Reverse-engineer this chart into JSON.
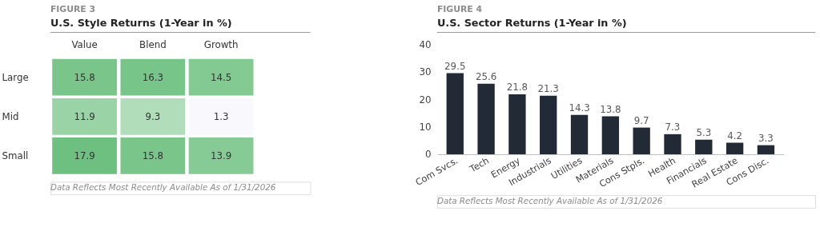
{
  "chart_data": [
    {
      "type": "heatmap",
      "subtitle": "FIGURE 3",
      "title": "U.S. Style Returns (1-Year in %)",
      "categories": [
        "Value",
        "Blend",
        "Growth"
      ],
      "y_categories": [
        "Large",
        "Mid",
        "Small"
      ],
      "cells": [
        [
          15.8,
          16.3,
          14.5
        ],
        [
          11.9,
          9.3,
          1.3
        ],
        [
          17.9,
          15.8,
          13.9
        ]
      ],
      "colors": [
        "#7ac68a",
        "#77c588",
        "#82c992",
        "#99d3a6",
        "#b1ddbb",
        "#f9f8fd",
        "#6dc080",
        "#7ac68a",
        "#86cb95"
      ],
      "data_labels": true,
      "annotations": [
        "Data Reflects Most Recently Available As of 1/31/2026"
      ]
    },
    {
      "type": "bar",
      "subtitle": "FIGURE 4",
      "title": "U.S. Sector Returns (1-Year in %)",
      "categories": [
        "Com Svcs.",
        "Tech",
        "Energy",
        "Industrials",
        "Utilities",
        "Materials",
        "Cons Stpls.",
        "Health",
        "Financials",
        "Real Estate",
        "Cons Disc."
      ],
      "values": [
        29.5,
        25.6,
        21.8,
        21.3,
        14.3,
        13.8,
        9.7,
        7.3,
        5.3,
        4.2,
        3.3
      ],
      "color": "#222a35",
      "ylim": [
        0,
        40
      ],
      "yticks": [
        0,
        10,
        20,
        30,
        40
      ],
      "grid": false,
      "data_labels": true,
      "annotations": [
        "Data Reflects Most Recently Available As of 1/31/2026"
      ]
    }
  ]
}
